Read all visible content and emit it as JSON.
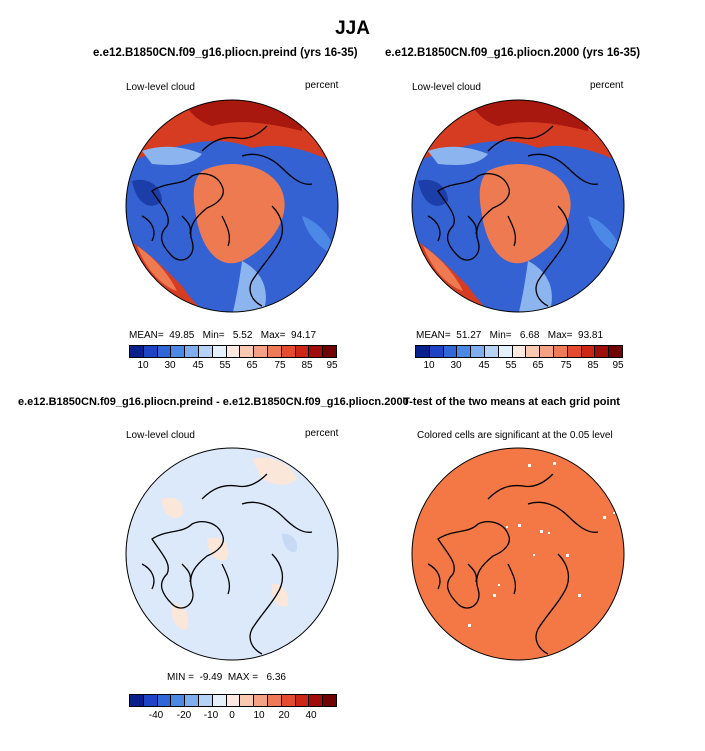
{
  "main_title": "JJA",
  "panels": [
    {
      "title": "e.e12.B1850CN.f09_g16.pliocn.preind (yrs 16-35)",
      "left_label": "Low-level cloud",
      "right_label": "percent",
      "stats": "MEAN=  49.85   Min=   5.52   Max=  94.17",
      "stats_values": {
        "mean": 49.85,
        "min": 5.52,
        "max": 94.17
      }
    },
    {
      "title": "e.e12.B1850CN.f09_g16.pliocn.2000 (yrs 16-35)",
      "left_label": "Low-level cloud",
      "right_label": "percent",
      "stats": "MEAN=  51.27   Min=   6.68   Max=  93.81",
      "stats_values": {
        "mean": 51.27,
        "min": 6.68,
        "max": 93.81
      }
    },
    {
      "title": "e.e12.B1850CN.f09_g16.pliocn.preind - e.e12.B1850CN.f09_g16.pliocn.2000",
      "left_label": "Low-level cloud",
      "right_label": "percent",
      "stats": "MIN =  -9.49  MAX =   6.36",
      "stats_values": {
        "min": -9.49,
        "max": 6.36
      }
    },
    {
      "title": "T-test of the two means at each grid point",
      "subtitle": "Colored cells are significant at the 0.05 level"
    }
  ],
  "colorbar_full": {
    "colors": [
      "#08208a",
      "#1c44c4",
      "#2f67d8",
      "#4c88e6",
      "#7fadee",
      "#b5d3f6",
      "#e4f0fb",
      "#fde9df",
      "#f9c9b2",
      "#f4a283",
      "#ef7a58",
      "#e54b2e",
      "#cb2616",
      "#a00e0a",
      "#700402"
    ],
    "ticks": [
      "10",
      "30",
      "45",
      "55",
      "65",
      "75",
      "85",
      "95"
    ]
  },
  "colorbar_diff": {
    "colors": [
      "#08208a",
      "#1c44c4",
      "#2f67d8",
      "#4c88e6",
      "#7fadee",
      "#b5d3f6",
      "#e4f0fb",
      "#fde9df",
      "#f9c9b2",
      "#f4a283",
      "#ef7a58",
      "#e54b2e",
      "#cb2616",
      "#a00e0a",
      "#700402"
    ],
    "ticks": [
      "-40",
      "-20",
      "-10",
      "0",
      "10",
      "20",
      "40"
    ]
  },
  "map_colors": {
    "ocean_blue": "#3462d2",
    "deep_blue": "#1c3ea8",
    "light_blue": "#8cb4ee",
    "orange": "#ee7a52",
    "red": "#d63c22",
    "dark_red": "#a8180e",
    "diff_bg": "#dbe9fa",
    "diff_pink": "#fbe6da",
    "ttest": "#f37845"
  }
}
